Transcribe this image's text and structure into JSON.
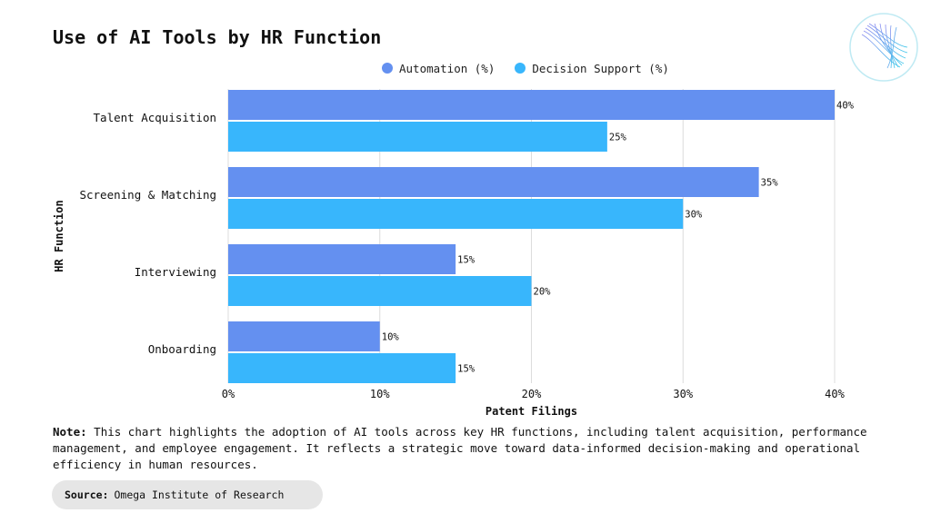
{
  "title": "Use of AI Tools by HR Function",
  "colors": {
    "automation": "#6490f0",
    "decision_support": "#38b6fc",
    "grid": "#dcdcdc"
  },
  "chart_data": {
    "type": "bar",
    "orientation": "horizontal",
    "categories": [
      "Talent Acquisition",
      "Screening & Matching",
      "Interviewing",
      "Onboarding"
    ],
    "series": [
      {
        "name": "Automation (%)",
        "values": [
          40,
          35,
          15,
          10
        ],
        "labels": [
          "40%",
          "35%",
          "15%",
          "10%"
        ],
        "color": "#6490f0"
      },
      {
        "name": "Decision Support (%)",
        "values": [
          25,
          30,
          20,
          15
        ],
        "labels": [
          "25%",
          "30%",
          "20%",
          "15%"
        ],
        "color": "#38b6fc"
      }
    ],
    "xlabel": "Patent Filings",
    "ylabel": "HR Function",
    "xlim": [
      0,
      40
    ],
    "xticks": [
      0,
      10,
      20,
      30,
      40
    ],
    "xtick_labels": [
      "0%",
      "10%",
      "20%",
      "30%",
      "40%"
    ],
    "grid": "vertical",
    "legend": "top"
  },
  "note": {
    "label": "Note:",
    "text": "This chart highlights the adoption of AI tools across key HR functions, including talent acquisition, performance management, and employee engagement. It reflects a strategic move toward data-informed decision-making and operational efficiency in human resources."
  },
  "source": {
    "label": "Source:",
    "text": "Omega Institute of Research"
  }
}
